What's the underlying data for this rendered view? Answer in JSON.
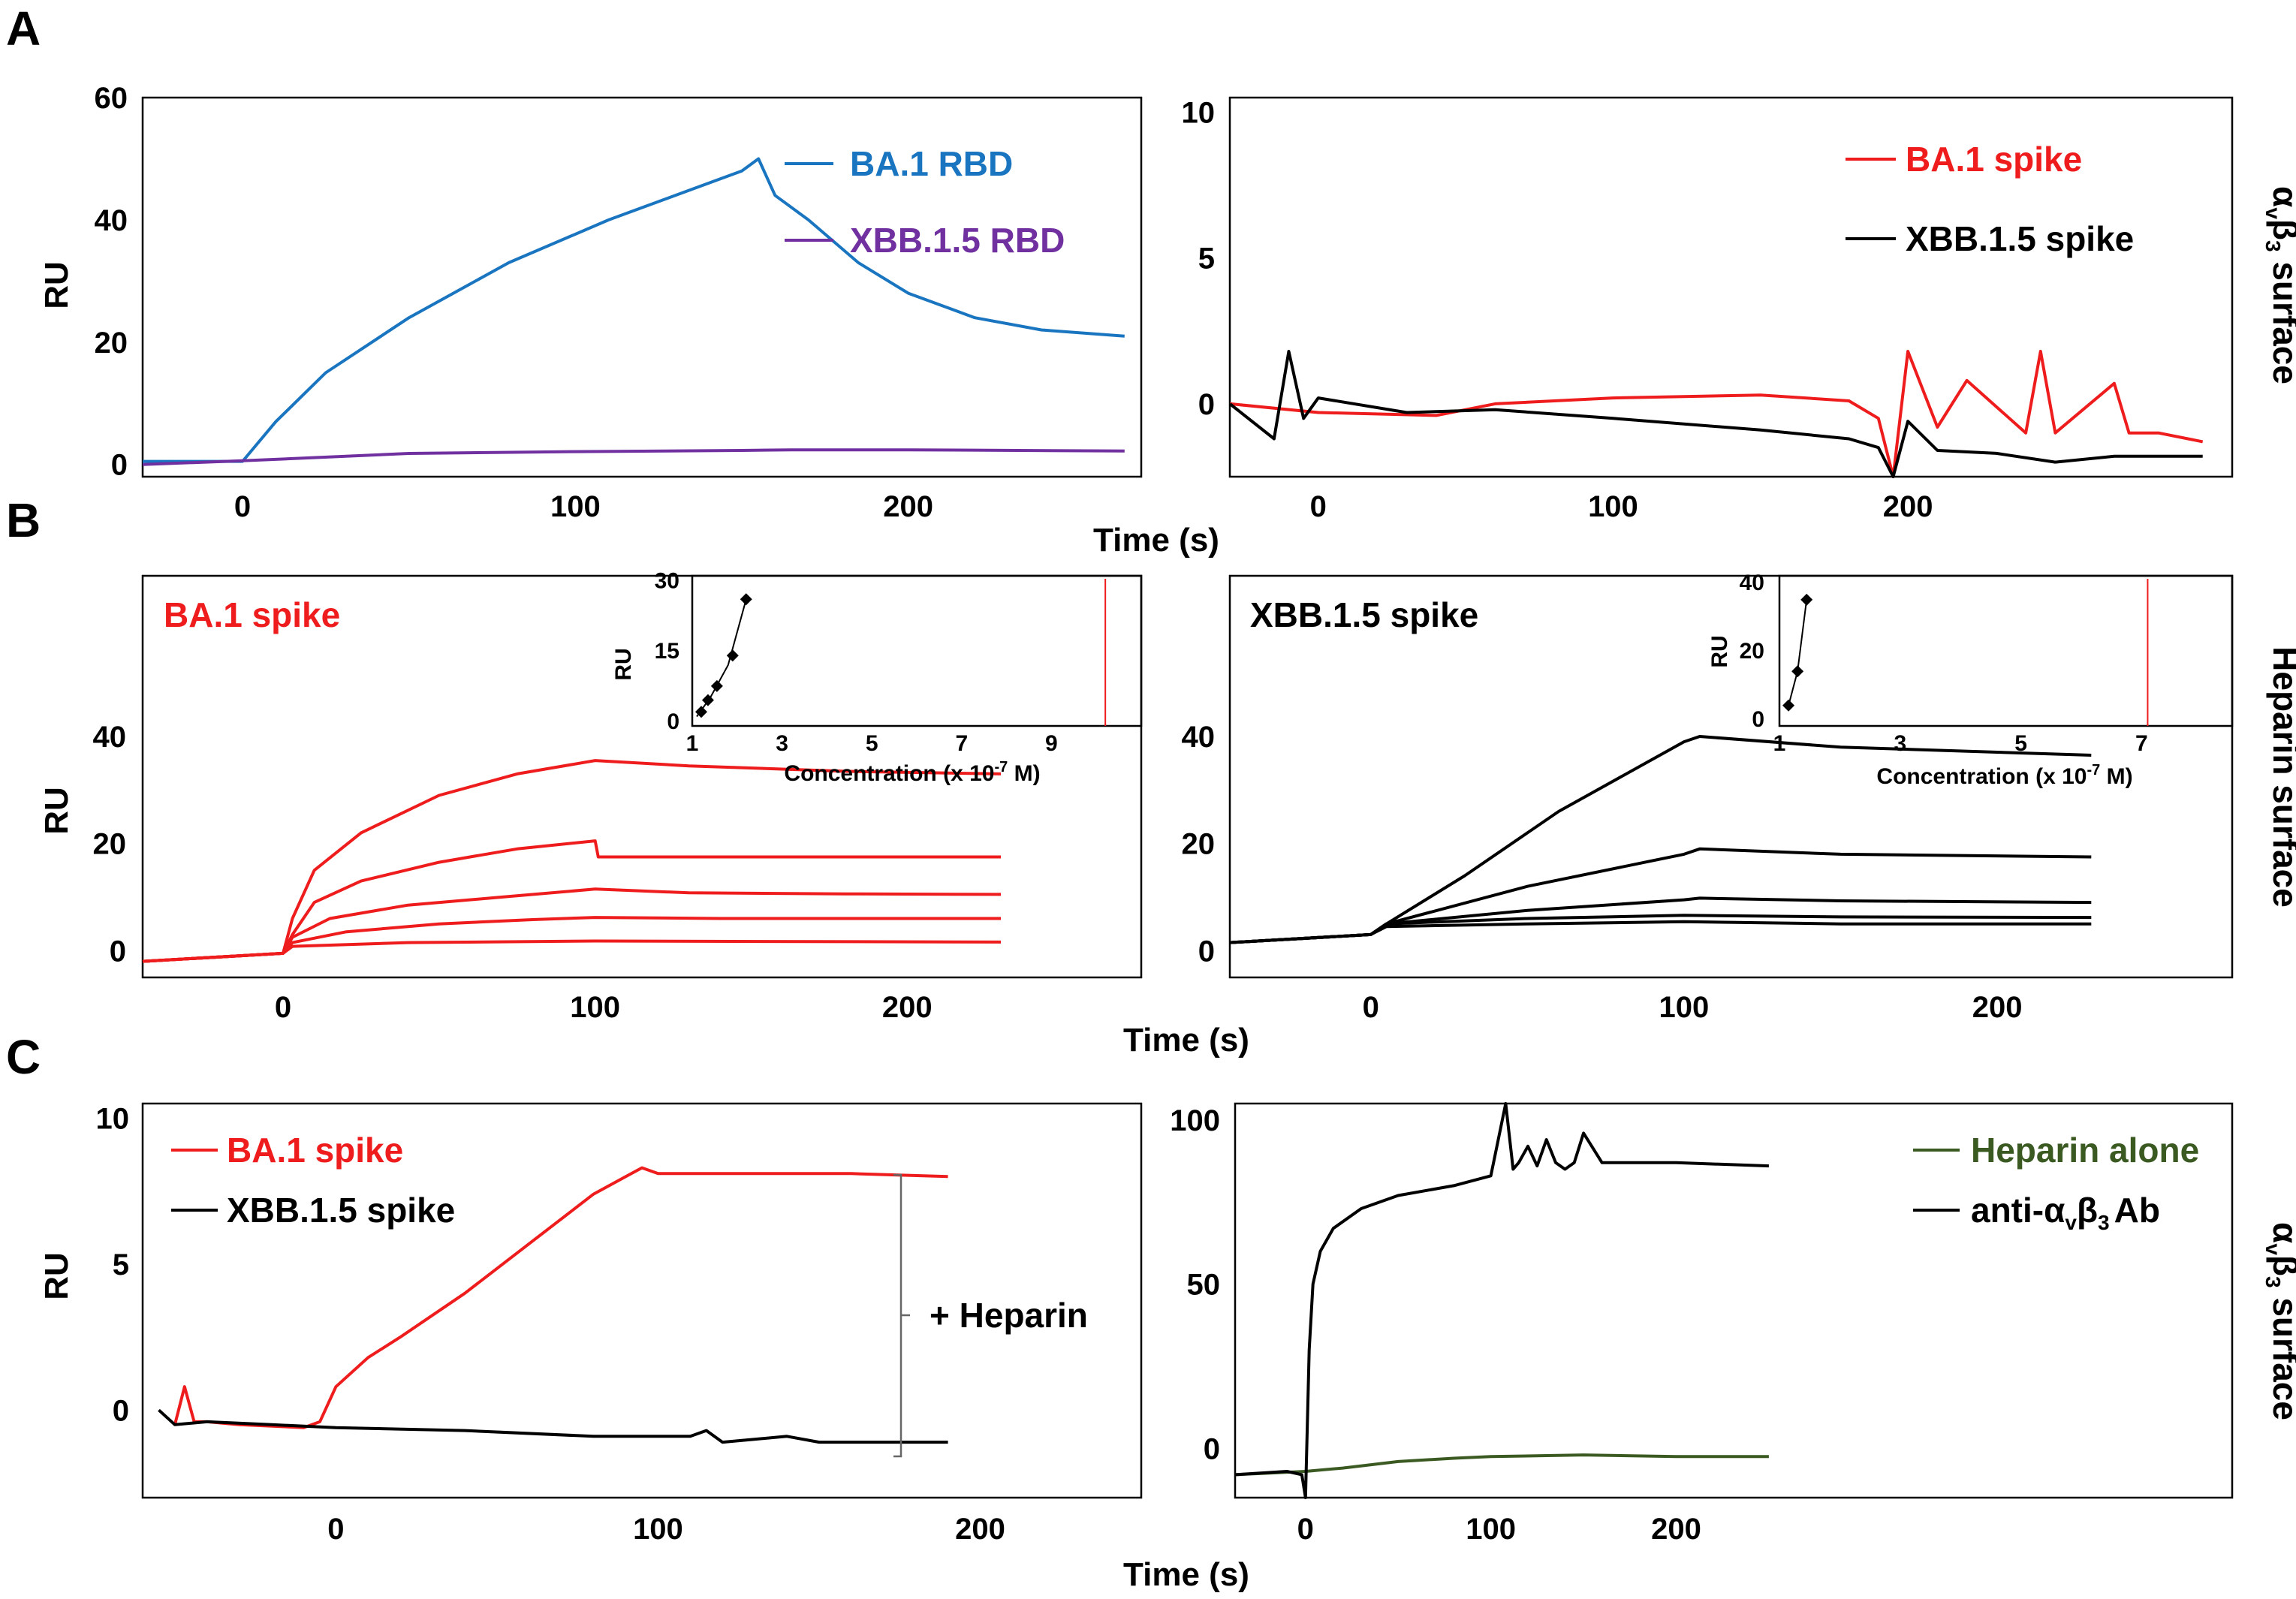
{
  "panel_labels": [
    "A",
    "B",
    "C"
  ],
  "colors": {
    "ba1_rbd": "#1a75c0",
    "xbb_rbd": "#7030a0",
    "ba1_spike": "#ee1c1c",
    "xbb_spike": "#000000",
    "heparin_alone": "#3a5a22",
    "anti_ab": "#000000"
  },
  "axis_titles": {
    "ru": "RU",
    "time_a": "Time (s)",
    "time_b": "Time (s)",
    "time_c": "Time (s)",
    "inset_ylabel": "RU",
    "inset_xlabel": "Concentration (x 10",
    "inset_xlabel_exp": "-7",
    "inset_xlabel_tail": " M)"
  },
  "side_labels": {
    "a_alpha": "α",
    "a_v": "v",
    "a_beta": "β",
    "a_3": "3",
    "a_rest": " surface",
    "b": "Heparin surface",
    "c_alpha": "α",
    "c_v": "v",
    "c_beta": "β",
    "c_3": "3",
    "c_rest": " surface"
  },
  "heparin_bracket_label": "+ Heparin",
  "chart_data": [
    {
      "id": "A-left",
      "type": "line",
      "surface": "αvβ3 surface",
      "xlabel": "Time (s)",
      "ylabel": "RU",
      "xlim": [
        -30,
        270
      ],
      "ylim": [
        -2,
        60
      ],
      "xticks": [
        "0",
        "100",
        "200"
      ],
      "yticks": [
        "0",
        "20",
        "40",
        "60"
      ],
      "series": [
        {
          "name": "BA.1 RBD",
          "x": [
            -30,
            0,
            10,
            25,
            50,
            80,
            110,
            140,
            150,
            155,
            160,
            170,
            185,
            200,
            220,
            240,
            265
          ],
          "y": [
            0.5,
            0.5,
            7,
            15,
            24,
            33,
            40,
            46,
            48,
            50,
            44,
            40,
            33,
            28,
            24,
            22,
            21
          ]
        },
        {
          "name": "XBB.1.5 RBD",
          "x": [
            -30,
            0,
            50,
            100,
            150,
            165,
            200,
            265
          ],
          "y": [
            0,
            0.6,
            1.8,
            2.1,
            2.3,
            2.4,
            2.4,
            2.2
          ]
        }
      ]
    },
    {
      "id": "A-right",
      "type": "line",
      "surface": "αvβ3 surface",
      "xlabel": "Time (s)",
      "ylabel": "RU",
      "xlim": [
        -30,
        310
      ],
      "ylim": [
        -2.5,
        10.5
      ],
      "xticks": [
        "0",
        "100",
        "200"
      ],
      "yticks": [
        "0",
        "5",
        "10"
      ],
      "series": [
        {
          "name": "BA.1 spike",
          "x": [
            -30,
            0,
            40,
            60,
            100,
            150,
            180,
            190,
            195,
            200,
            210,
            220,
            240,
            245,
            250,
            270,
            275,
            285,
            300
          ],
          "y": [
            0,
            -0.3,
            -0.4,
            0,
            0.2,
            0.3,
            0.1,
            -0.5,
            -2.5,
            1.8,
            -0.8,
            0.8,
            -1,
            1.8,
            -1,
            0.7,
            -1,
            -1,
            -1.3
          ]
        },
        {
          "name": "XBB.1.5 spike",
          "x": [
            -30,
            -15,
            -10,
            -5,
            0,
            30,
            60,
            100,
            150,
            180,
            190,
            195,
            200,
            210,
            230,
            250,
            270,
            300
          ],
          "y": [
            0,
            -1.2,
            1.8,
            -0.5,
            0.2,
            -0.3,
            -0.2,
            -0.5,
            -0.9,
            -1.2,
            -1.5,
            -2.5,
            -0.6,
            -1.6,
            -1.7,
            -2.0,
            -1.8,
            -1.8
          ]
        }
      ]
    },
    {
      "id": "B-left",
      "type": "line",
      "surface": "Heparin surface",
      "title": "BA.1  spike",
      "xlabel": "Time (s)",
      "ylabel": "RU",
      "xlim": [
        -45,
        275
      ],
      "ylim": [
        -5,
        70
      ],
      "xticks": [
        "0",
        "100",
        "200"
      ],
      "yticks": [
        "0",
        "20",
        "40"
      ],
      "series": [
        {
          "name": "BA.1 spike c1",
          "x": [
            -45,
            0,
            3,
            10,
            25,
            50,
            75,
            100,
            130,
            180,
            230
          ],
          "y": [
            -2,
            -0.5,
            6,
            15,
            22,
            29,
            33,
            35.5,
            34.5,
            33.5,
            33
          ]
        },
        {
          "name": "BA.1 spike c2",
          "x": [
            -45,
            0,
            3,
            10,
            25,
            50,
            75,
            100,
            101,
            130,
            180,
            230
          ],
          "y": [
            -2,
            -0.5,
            3,
            9,
            13,
            16.5,
            19,
            20.5,
            17.5,
            17.5,
            17.5,
            17.5
          ]
        },
        {
          "name": "BA.1 spike c3",
          "x": [
            -45,
            0,
            3,
            15,
            40,
            70,
            100,
            130,
            180,
            230
          ],
          "y": [
            -2,
            -0.5,
            2.5,
            6,
            8.5,
            10,
            11.5,
            10.8,
            10.6,
            10.5
          ]
        },
        {
          "name": "BA.1 spike c4",
          "x": [
            -45,
            0,
            3,
            20,
            50,
            80,
            100,
            140,
            230
          ],
          "y": [
            -2,
            -0.5,
            1.5,
            3.5,
            5,
            5.8,
            6.2,
            6,
            6
          ]
        },
        {
          "name": "BA.1 spike c5",
          "x": [
            -45,
            0,
            3,
            40,
            100,
            230
          ],
          "y": [
            -2,
            -0.5,
            0.8,
            1.5,
            1.8,
            1.6
          ]
        }
      ],
      "inset": {
        "xlabel": "Concentration (x 10-7 M)",
        "ylabel": "RU",
        "xlim": [
          1,
          11
        ],
        "ylim": [
          -1,
          31
        ],
        "xticks": [
          "1",
          "3",
          "5",
          "7",
          "9"
        ],
        "yticks": [
          "0",
          "15",
          "30"
        ],
        "points": {
          "x": [
            1.2,
            1.35,
            1.55,
            1.9,
            2.2
          ],
          "y": [
            2,
            4.5,
            7.5,
            14,
            26
          ]
        },
        "fit": {
          "x": [
            1.1,
            1.4,
            1.8,
            2.2
          ],
          "y": [
            1,
            5,
            12,
            26
          ]
        },
        "marker_x": 10.2
      }
    },
    {
      "id": "B-right",
      "type": "line",
      "surface": "Heparin surface",
      "title": "XBB.1.5  spike",
      "xlabel": "Time (s)",
      "ylabel": "RU",
      "xlim": [
        -45,
        275
      ],
      "ylim": [
        -5,
        70
      ],
      "xticks": [
        "0",
        "100",
        "200"
      ],
      "yticks": [
        "0",
        "20",
        "40"
      ],
      "series": [
        {
          "name": "XBB.1.5 spike c1",
          "x": [
            -45,
            0,
            5,
            30,
            60,
            100,
            105,
            150,
            230
          ],
          "y": [
            1.5,
            3,
            5,
            14,
            26,
            39,
            40,
            38,
            36.5
          ]
        },
        {
          "name": "XBB.1.5 spike c2",
          "x": [
            -45,
            0,
            5,
            50,
            100,
            105,
            150,
            230
          ],
          "y": [
            1.5,
            3,
            5,
            12,
            18,
            19,
            18,
            17.5
          ]
        },
        {
          "name": "XBB.1.5 spike c3",
          "x": [
            -45,
            0,
            5,
            50,
            100,
            105,
            150,
            230
          ],
          "y": [
            1.5,
            3,
            5,
            7.5,
            9.5,
            9.8,
            9.3,
            9
          ]
        },
        {
          "name": "XBB.1.5 spike c4",
          "x": [
            -45,
            0,
            5,
            50,
            100,
            150,
            230
          ],
          "y": [
            1.5,
            3,
            5,
            6,
            6.6,
            6.3,
            6.2
          ]
        },
        {
          "name": "XBB.1.5 spike c5",
          "x": [
            -45,
            0,
            5,
            50,
            100,
            150,
            230
          ],
          "y": [
            1.5,
            3,
            4.5,
            5,
            5.4,
            5,
            5
          ]
        }
      ],
      "inset": {
        "xlabel": "Concentration (x 10-7 M)",
        "ylabel": "RU",
        "xlim": [
          1,
          8.5
        ],
        "ylim": [
          -2,
          42
        ],
        "xticks": [
          "1",
          "3",
          "5",
          "7"
        ],
        "yticks": [
          "0",
          "20",
          "40"
        ],
        "points": {
          "x": [
            1.15,
            1.3,
            1.45
          ],
          "y": [
            4,
            14,
            35
          ]
        },
        "fit": {
          "x": [
            1.15,
            1.3,
            1.45
          ],
          "y": [
            4,
            14,
            35
          ]
        },
        "marker_x": 7.1
      }
    },
    {
      "id": "C-left",
      "type": "line",
      "surface": "αvβ3 surface",
      "xlabel": "Time (s)",
      "ylabel": "RU",
      "annotation": "+ Heparin",
      "xlim": [
        -60,
        250
      ],
      "ylim": [
        -3,
        10.5
      ],
      "xticks": [
        "0",
        "100",
        "200"
      ],
      "yticks": [
        "0",
        "5",
        "10"
      ],
      "series": [
        {
          "name": "BA.1  spike",
          "x": [
            -50,
            -47,
            -44,
            -40,
            -30,
            -10,
            -5,
            0,
            10,
            20,
            40,
            60,
            80,
            90,
            95,
            100,
            120,
            160,
            190
          ],
          "y": [
            -0.5,
            0.8,
            -0.4,
            -0.4,
            -0.5,
            -0.6,
            -0.4,
            0.8,
            1.8,
            2.5,
            4.0,
            5.7,
            7.4,
            8.0,
            8.3,
            8.1,
            8.1,
            8.1,
            8.0
          ]
        },
        {
          "name": "XBB.1.5  spike",
          "x": [
            -55,
            -50,
            -40,
            -20,
            0,
            40,
            80,
            110,
            115,
            120,
            140,
            150,
            190
          ],
          "y": [
            0,
            -0.5,
            -0.4,
            -0.5,
            -0.6,
            -0.7,
            -0.9,
            -0.9,
            -0.7,
            -1.1,
            -0.9,
            -1.1,
            -1.1
          ]
        }
      ]
    },
    {
      "id": "C-right",
      "type": "line",
      "surface": "αvβ3 surface",
      "xlabel": "Time (s)",
      "ylabel": "RU",
      "xlim": [
        -38,
        500
      ],
      "ylim": [
        -15,
        105
      ],
      "xticks": [
        "0",
        "100",
        "200"
      ],
      "yticks": [
        "0",
        "50",
        "100"
      ],
      "series": [
        {
          "name": "Heparin alone",
          "x": [
            -38,
            0,
            20,
            50,
            80,
            100,
            150,
            200,
            250
          ],
          "y": [
            -8,
            -7,
            -6,
            -4,
            -3,
            -2.5,
            -2,
            -2.5,
            -2.5
          ]
        },
        {
          "name": "anti-αvβ3 Ab",
          "x": [
            -38,
            -10,
            -2,
            0,
            2,
            4,
            8,
            15,
            30,
            50,
            80,
            100,
            108,
            112,
            115,
            120,
            125,
            130,
            135,
            140,
            145,
            150,
            160,
            200,
            250
          ],
          "y": [
            -8,
            -7,
            -8,
            -15,
            30,
            50,
            60,
            67,
            73,
            77,
            80,
            83,
            105,
            85,
            87,
            92,
            86,
            94,
            87,
            85,
            87,
            96,
            87,
            87,
            86
          ]
        }
      ]
    }
  ],
  "legends": {
    "a_left": [
      "BA.1 RBD",
      "XBB.1.5 RBD"
    ],
    "a_right": [
      "BA.1 spike",
      "XBB.1.5 spike"
    ],
    "c_left": [
      "BA.1  spike",
      "XBB.1.5  spike"
    ],
    "c_right_1": "Heparin alone",
    "c_right_2a": "anti-",
    "c_right_alpha": "α",
    "c_right_v": "v",
    "c_right_beta": "β",
    "c_right_3": "3",
    "c_right_2b": "Ab"
  }
}
